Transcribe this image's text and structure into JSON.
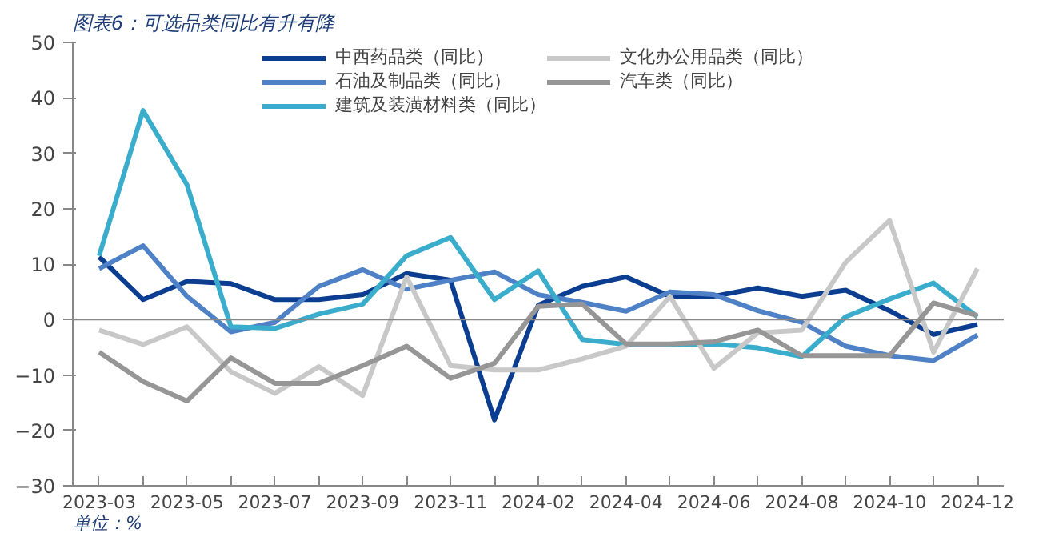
{
  "chart_data": {
    "type": "line",
    "title": "图表6：可选品类同比有升有降",
    "categories": [
      "2023-03",
      null,
      "2023-05",
      null,
      "2023-07",
      null,
      "2023-09",
      null,
      "2023-11",
      null,
      "2024-02",
      null,
      "2024-04",
      null,
      "2024-06",
      null,
      "2024-08",
      null,
      "2024-10",
      null,
      "2024-12"
    ],
    "series": [
      {
        "name": "中西药品类（同比）",
        "color": "#0b3d91",
        "values": [
          11.3,
          3.6,
          6.9,
          6.5,
          3.6,
          3.6,
          4.5,
          8.3,
          7.1,
          -18.1,
          2.6,
          6.0,
          7.7,
          4.2,
          4.2,
          5.7,
          4.2,
          5.3,
          1.6,
          -2.7,
          -0.9
        ]
      },
      {
        "name": "石油及制品类（同比）",
        "color": "#4f81c7",
        "values": [
          9.2,
          13.3,
          4.2,
          -2.2,
          -0.5,
          6.0,
          9.0,
          5.5,
          7.1,
          8.6,
          4.5,
          3.1,
          1.5,
          5.0,
          4.5,
          1.6,
          -0.5,
          -4.8,
          -6.5,
          -7.4,
          -2.8
        ]
      },
      {
        "name": "建筑及装潢材料类（同比）",
        "color": "#3aaccc",
        "values": [
          11.5,
          37.7,
          24.3,
          -1.3,
          -1.6,
          1.0,
          2.8,
          11.5,
          14.8,
          3.6,
          8.8,
          -3.6,
          -4.5,
          -4.5,
          -4.4,
          -5.1,
          -6.7,
          0.5,
          3.7,
          6.6,
          0.5
        ]
      },
      {
        "name": "文化办公用品类（同比）",
        "color": "#c8c8c8",
        "values": [
          -1.9,
          -4.5,
          -1.3,
          -9.4,
          -13.3,
          -8.5,
          -13.7,
          7.7,
          -8.3,
          -9.1,
          -9.1,
          -7.1,
          -4.8,
          4.2,
          -8.8,
          -2.4,
          -1.9,
          10.3,
          17.9,
          -5.9,
          9.2
        ]
      },
      {
        "name": "汽车类（同比）",
        "color": "#969696",
        "values": [
          -5.9,
          -11.2,
          -14.7,
          -6.9,
          -11.5,
          -11.5,
          -8.3,
          -4.8,
          -10.6,
          -7.9,
          2.4,
          2.8,
          -4.4,
          -4.4,
          -4.0,
          -1.9,
          -6.5,
          -6.5,
          -6.5,
          3.0,
          0.7
        ]
      }
    ],
    "ref_lines": [
      {
        "axis": "y",
        "value": 0,
        "color": "#888888"
      }
    ],
    "ylim": [
      -30,
      50
    ],
    "yticks": [
      -30,
      -20,
      -10,
      0,
      10,
      20,
      30,
      40,
      50
    ],
    "grid": false,
    "legend": "top",
    "marker": "none",
    "line_style": "solid",
    "annotations": [
      "单位：%"
    ]
  }
}
